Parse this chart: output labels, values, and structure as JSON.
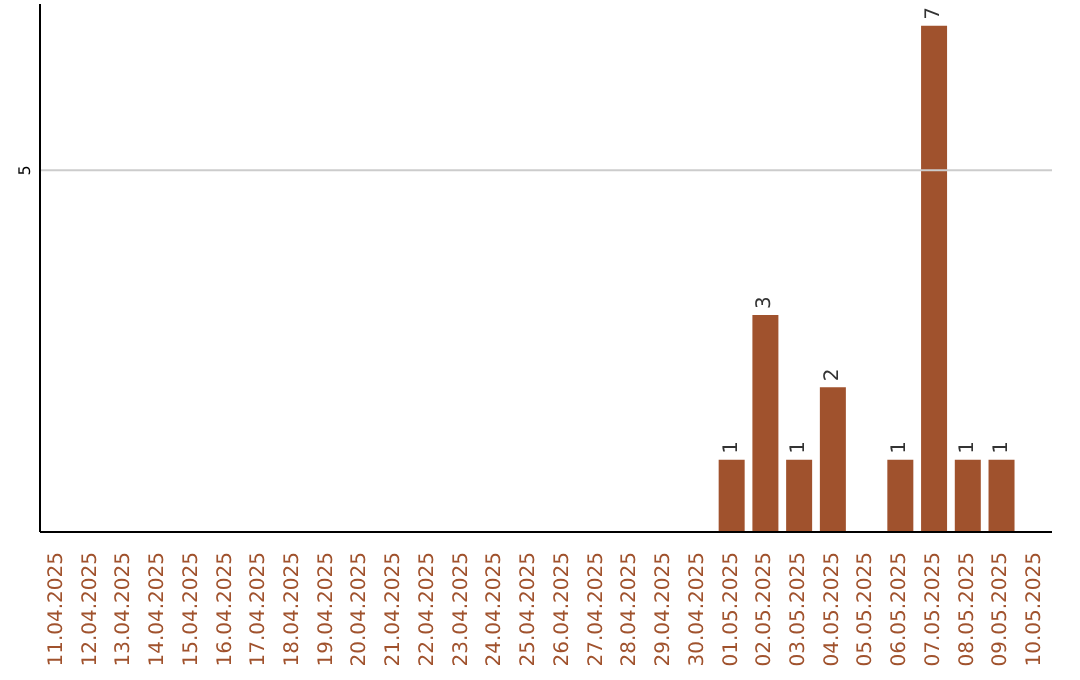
{
  "chart_data": {
    "type": "bar",
    "categories": [
      "11.04.2025",
      "12.04.2025",
      "13.04.2025",
      "14.04.2025",
      "15.04.2025",
      "16.04.2025",
      "17.04.2025",
      "18.04.2025",
      "19.04.2025",
      "20.04.2025",
      "21.04.2025",
      "22.04.2025",
      "23.04.2025",
      "24.04.2025",
      "25.04.2025",
      "26.04.2025",
      "27.04.2025",
      "28.04.2025",
      "29.04.2025",
      "30.04.2025",
      "01.05.2025",
      "02.05.2025",
      "03.05.2025",
      "04.05.2025",
      "05.05.2025",
      "06.05.2025",
      "07.05.2025",
      "08.05.2025",
      "09.05.2025",
      "10.05.2025"
    ],
    "values": [
      null,
      null,
      null,
      null,
      null,
      null,
      null,
      null,
      null,
      null,
      null,
      null,
      null,
      null,
      null,
      null,
      null,
      null,
      null,
      null,
      1,
      3,
      1,
      2,
      null,
      1,
      7,
      1,
      1,
      null
    ],
    "data_labels": true,
    "color": "#a0522d",
    "ylim": [
      0,
      7.3
    ],
    "ref_lines": [
      {
        "axis": "y",
        "value": 5,
        "label": "5",
        "color": "#cccccc"
      }
    ]
  }
}
